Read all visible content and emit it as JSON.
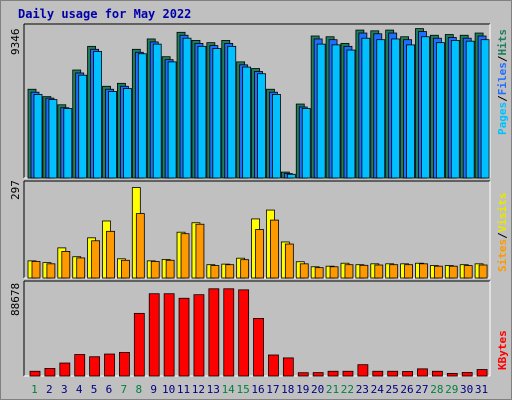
{
  "title": "Daily usage for May 2022",
  "colors": {
    "background": "#c0c0c0",
    "panel": "#c0c0c0",
    "hits": "#1e7f5c",
    "files": "#1f6fff",
    "pages": "#00c0ff",
    "visits": "#ffff00",
    "sites": "#ff9900",
    "kbytes": "#ff0000",
    "weekend_label": "#008040",
    "weekday_label": "#000080"
  },
  "legend_labels": {
    "top": [
      "Pages",
      "Files",
      "Hits"
    ],
    "middle": [
      "Sites",
      "Visits"
    ],
    "bottom": [
      "KBytes"
    ]
  },
  "axis_max_labels": {
    "top": "9346",
    "middle": "297",
    "bottom": "88678"
  },
  "chart_data": {
    "type": "bar",
    "title": "Daily usage for May 2022",
    "categories": [
      "1",
      "2",
      "3",
      "4",
      "5",
      "6",
      "7",
      "8",
      "9",
      "10",
      "11",
      "12",
      "13",
      "14",
      "15",
      "16",
      "17",
      "18",
      "19",
      "20",
      "21",
      "22",
      "23",
      "24",
      "25",
      "26",
      "27",
      "28",
      "29",
      "30",
      "31"
    ],
    "weekend_days": [
      "1",
      "7",
      "8",
      "14",
      "15",
      "21",
      "22",
      "28",
      "29"
    ],
    "panels": [
      {
        "name": "top",
        "ymax": 9346,
        "series": [
          {
            "name": "Hits",
            "values": [
              6000,
              5500,
              4950,
              7300,
              8900,
              6200,
              6400,
              8700,
              9400,
              8200,
              9850,
              9300,
              9150,
              9300,
              7850,
              7400,
              6000,
              400,
              5000,
              9600,
              9550,
              9100,
              10000,
              9950,
              10000,
              9550,
              10100,
              9650,
              9700,
              9650,
              9800
            ]
          },
          {
            "name": "Files",
            "values": [
              5800,
              5400,
              4750,
              7100,
              8700,
              6000,
              6200,
              8500,
              9200,
              8000,
              9650,
              9100,
              8950,
              9100,
              7650,
              7200,
              5800,
              300,
              4800,
              9400,
              9350,
              8900,
              9800,
              9750,
              9800,
              9350,
              9900,
              9450,
              9500,
              9450,
              9600
            ]
          },
          {
            "name": "Pages",
            "values": [
              5650,
              5300,
              4700,
              6950,
              8550,
              5850,
              6050,
              8400,
              9050,
              7850,
              9450,
              8900,
              8750,
              8900,
              7500,
              7050,
              5650,
              250,
              4700,
              9050,
              9000,
              8650,
              9450,
              9350,
              9400,
              9000,
              9550,
              9150,
              9300,
              9250,
              9350
            ]
          }
        ]
      },
      {
        "name": "middle",
        "ymax": 297,
        "series": [
          {
            "name": "Visits",
            "values": [
              58,
              52,
              102,
              72,
              136,
              193,
              65,
              306,
              58,
              63,
              155,
              187,
              45,
              47,
              67,
              200,
              230,
              122,
              55,
              38,
              40,
              50,
              45,
              48,
              48,
              48,
              50,
              42,
              42,
              45,
              48
            ]
          },
          {
            "name": "Sites",
            "values": [
              56,
              48,
              90,
              68,
              126,
              158,
              60,
              218,
              56,
              60,
              150,
              182,
              42,
              45,
              62,
              164,
              196,
              115,
              48,
              35,
              38,
              45,
              43,
              44,
              45,
              45,
              48,
              40,
              40,
              42,
              44
            ]
          }
        ]
      },
      {
        "name": "bottom",
        "ymax": 88678,
        "series": [
          {
            "name": "KBytes",
            "values": [
              4900,
              7800,
              13400,
              22200,
              19900,
              22700,
              24400,
              64700,
              85000,
              85000,
              80300,
              84000,
              90100,
              90100,
              89000,
              59500,
              21700,
              18700,
              3400,
              3500,
              4900,
              4900,
              11700,
              4900,
              4900,
              4700,
              7400,
              4900,
              2700,
              3700,
              6700
            ]
          }
        ]
      }
    ]
  }
}
